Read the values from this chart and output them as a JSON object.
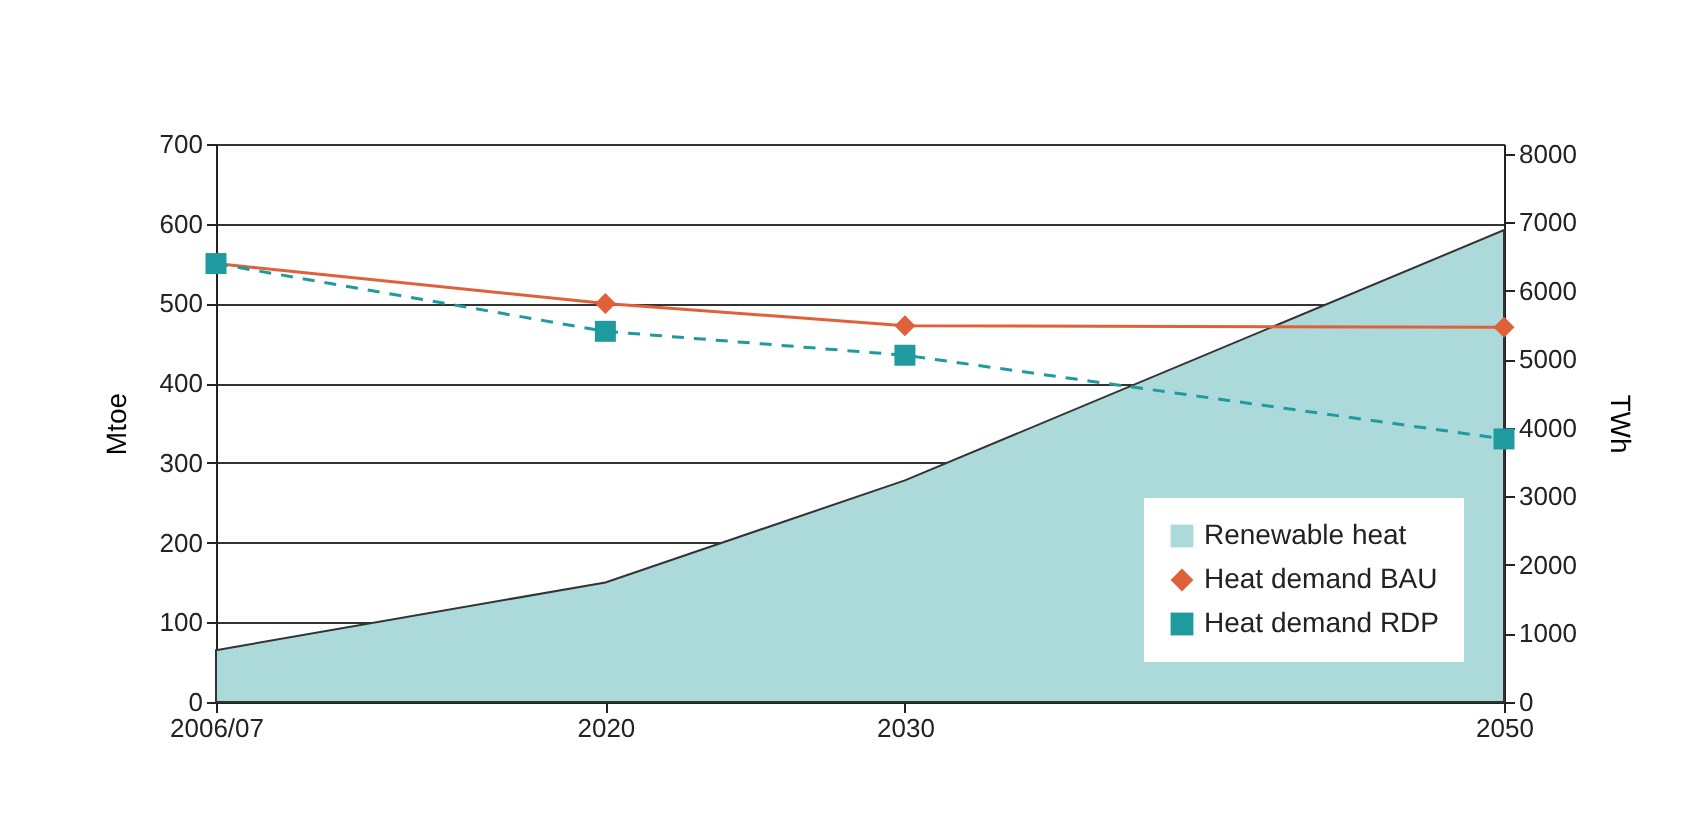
{
  "chart_data": {
    "type": "line",
    "x": [
      2007,
      2020,
      2030,
      2050
    ],
    "xlim": [
      2007,
      2050
    ],
    "xticks": [
      {
        "value": 2007,
        "label": "2006/07"
      },
      2020,
      2030,
      2050
    ],
    "ylabel": "Mtoe",
    "y2label": "TWh",
    "ylim": [
      0,
      700
    ],
    "yticks": [
      0,
      100,
      200,
      300,
      400,
      500,
      600,
      700
    ],
    "y2lim": [
      0,
      8141
    ],
    "y2ticks": [
      0,
      1000,
      2000,
      3000,
      4000,
      5000,
      6000,
      7000,
      8000
    ],
    "series": [
      {
        "name": "Renewable heat",
        "type": "area",
        "color": "#acdada",
        "values": [
          65,
          150,
          278,
          592
        ]
      },
      {
        "name": "Heat demand BAU",
        "color": "#e0603a",
        "marker": "diamond",
        "line_style": "solid",
        "values": [
          550,
          500,
          472,
          470
        ]
      },
      {
        "name": "Heat demand RDP",
        "color": "#1f9a9e",
        "marker": "square",
        "line_style": "dashed",
        "values": [
          550,
          465,
          435,
          330
        ]
      }
    ],
    "grid": "y",
    "legend": "bottom right"
  }
}
